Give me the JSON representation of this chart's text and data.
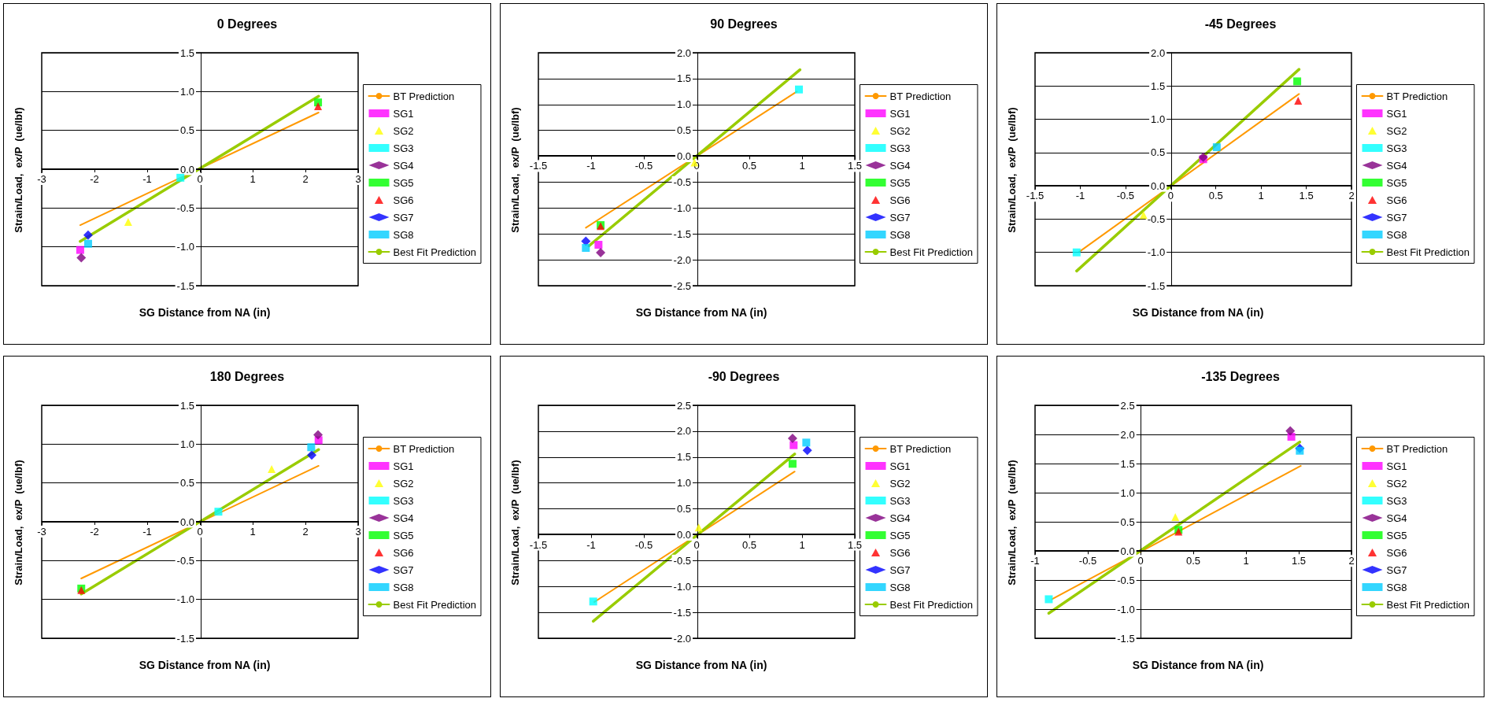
{
  "chart_data": [
    {
      "type": "scatter",
      "title": "0 Degrees",
      "xlabel": "SG Distance from NA (in)",
      "ylabel": "Strain/Load,  ex/P  (ue/lbf)",
      "xlim": [
        -3,
        3
      ],
      "xticks": [
        -3,
        -2,
        -1,
        0,
        1,
        2,
        3
      ],
      "ylim": [
        -1.5,
        1.5
      ],
      "yticks": [
        -1.5,
        {
          "value": -1,
          "label": "-1.0"
        },
        -0.5,
        {
          "value": 0,
          "label": "0.0"
        },
        0.5,
        {
          "value": 1,
          "label": "1.0"
        },
        1.5
      ],
      "grid": "y",
      "legend": "right",
      "series": [
        {
          "name": "BT Prediction",
          "type": "line",
          "color": "#ff9900",
          "marker": "none",
          "x": [
            -2.27,
            2.25
          ],
          "values": [
            -0.72,
            0.73
          ]
        },
        {
          "name": "SG1",
          "color": "#ff00ff",
          "marker": "square",
          "x": [
            -2.27
          ],
          "values": [
            -1.04
          ]
        },
        {
          "name": "SG2",
          "color": "#ffff00",
          "marker": "triangle",
          "x": [
            -1.36
          ],
          "values": [
            -0.68
          ]
        },
        {
          "name": "SG3",
          "color": "#00ffff",
          "marker": "square",
          "x": [
            -0.37
          ],
          "values": [
            -0.11
          ]
        },
        {
          "name": "SG4",
          "color": "#800080",
          "marker": "diamond",
          "x": [
            -2.25
          ],
          "values": [
            -1.14
          ]
        },
        {
          "name": "SG5",
          "color": "#00ff00",
          "marker": "square",
          "x": [
            2.24
          ],
          "values": [
            0.86
          ]
        },
        {
          "name": "SG6",
          "color": "#ff0000",
          "marker": "triangle",
          "x": [
            2.24
          ],
          "values": [
            0.81
          ]
        },
        {
          "name": "SG7",
          "color": "#0000ff",
          "marker": "diamond",
          "x": [
            -2.12
          ],
          "values": [
            -0.85
          ]
        },
        {
          "name": "SG8",
          "color": "#00ccff",
          "marker": "square",
          "x": [
            -2.12
          ],
          "values": [
            -0.96
          ]
        },
        {
          "name": "Best Fit Prediction",
          "type": "line",
          "color": "#99cc00",
          "marker": "none",
          "x": [
            -2.27,
            2.25
          ],
          "values": [
            -0.93,
            0.94
          ]
        }
      ]
    },
    {
      "type": "scatter",
      "title": "90 Degrees",
      "xlabel": "SG Distance from NA (in)",
      "ylabel": "Strain/Load,  ex/P  (ue/lbf)",
      "xlim": [
        -1.5,
        1.5
      ],
      "xticks": [
        -1.5,
        -1,
        -0.5,
        0,
        0.5,
        1,
        1.5
      ],
      "ylim": [
        -2.5,
        2
      ],
      "yticks": [
        -2.5,
        {
          "value": -2,
          "label": "-2.0"
        },
        -1.5,
        {
          "value": -1,
          "label": "-1.0"
        },
        -0.5,
        {
          "value": 0,
          "label": "0.0"
        },
        0.5,
        {
          "value": 1,
          "label": "1.0"
        },
        1.5,
        {
          "value": 2,
          "label": "2.0"
        }
      ],
      "grid": "y",
      "legend": "right",
      "series": [
        {
          "name": "BT Prediction",
          "type": "line",
          "color": "#ff9900",
          "marker": "none",
          "x": [
            -1.05,
            0.95
          ],
          "values": [
            -1.38,
            1.25
          ]
        },
        {
          "name": "SG1",
          "color": "#ff00ff",
          "marker": "square",
          "x": [
            -0.93
          ],
          "values": [
            -1.71
          ]
        },
        {
          "name": "SG2",
          "color": "#ffff00",
          "marker": "triangle",
          "x": [
            -0.02
          ],
          "values": [
            -0.12
          ]
        },
        {
          "name": "SG3",
          "color": "#00ffff",
          "marker": "square",
          "x": [
            0.97
          ],
          "values": [
            1.29
          ]
        },
        {
          "name": "SG4",
          "color": "#800080",
          "marker": "diamond",
          "x": [
            -0.91
          ],
          "values": [
            -1.86
          ]
        },
        {
          "name": "SG5",
          "color": "#00ff00",
          "marker": "square",
          "x": [
            -0.91
          ],
          "values": [
            -1.33
          ]
        },
        {
          "name": "SG6",
          "color": "#ff0000",
          "marker": "triangle",
          "x": [
            -0.91
          ],
          "values": [
            -1.35
          ]
        },
        {
          "name": "SG7",
          "color": "#0000ff",
          "marker": "diamond",
          "x": [
            -1.05
          ],
          "values": [
            -1.64
          ]
        },
        {
          "name": "SG8",
          "color": "#00ccff",
          "marker": "square",
          "x": [
            -1.05
          ],
          "values": [
            -1.77
          ]
        },
        {
          "name": "Best Fit Prediction",
          "type": "line",
          "color": "#99cc00",
          "marker": "none",
          "x": [
            -1.02,
            0.98
          ],
          "values": [
            -1.73,
            1.67
          ]
        }
      ]
    },
    {
      "type": "scatter",
      "title": "-45 Degrees",
      "xlabel": "SG Distance from NA (in)",
      "ylabel": "Strain/Load,  ex/P  (ue/lbf)",
      "xlim": [
        -1.5,
        2
      ],
      "xticks": [
        -1.5,
        -1,
        -0.5,
        0,
        0.5,
        1,
        1.5,
        2
      ],
      "ylim": [
        -1.5,
        2
      ],
      "yticks": [
        -1.5,
        {
          "value": -1,
          "label": "-1.0"
        },
        -0.5,
        {
          "value": 0,
          "label": "0.0"
        },
        0.5,
        {
          "value": 1,
          "label": "1.0"
        },
        1.5,
        {
          "value": 2,
          "label": "2.0"
        }
      ],
      "grid": "y",
      "legend": "right",
      "series": [
        {
          "name": "BT Prediction",
          "type": "line",
          "color": "#ff9900",
          "marker": "none",
          "x": [
            -1.01,
            1.42
          ],
          "values": [
            -0.99,
            1.38
          ]
        },
        {
          "name": "SG1",
          "color": "#ff00ff",
          "marker": "square",
          "x": [
            0.36
          ],
          "values": [
            0.4
          ]
        },
        {
          "name": "SG2",
          "color": "#ffff00",
          "marker": "triangle",
          "x": [
            -0.3
          ],
          "values": [
            -0.44
          ]
        },
        {
          "name": "SG3",
          "color": "#00ffff",
          "marker": "square",
          "x": [
            -1.04
          ],
          "values": [
            -1
          ]
        },
        {
          "name": "SG4",
          "color": "#800080",
          "marker": "diamond",
          "x": [
            0.36
          ],
          "values": [
            0.43
          ]
        },
        {
          "name": "SG5",
          "color": "#00ff00",
          "marker": "square",
          "x": [
            1.4
          ],
          "values": [
            1.57
          ]
        },
        {
          "name": "SG6",
          "color": "#ff0000",
          "marker": "triangle",
          "x": [
            1.41
          ],
          "values": [
            1.28
          ]
        },
        {
          "name": "SG7",
          "color": "#0000ff",
          "marker": "diamond"
        },
        {
          "name": "SG8",
          "color": "#00ccff",
          "marker": "square",
          "x": [
            0.51
          ],
          "values": [
            0.58
          ]
        },
        {
          "name": "Best Fit Prediction",
          "type": "line",
          "color": "#99cc00",
          "marker": "none",
          "x": [
            -1.04,
            1.42
          ],
          "values": [
            -1.28,
            1.75
          ]
        }
      ]
    },
    {
      "type": "scatter",
      "title": "180 Degrees",
      "xlabel": "SG Distance from NA (in)",
      "ylabel": "Strain/Load,  ex/P  (ue/lbf)",
      "xlim": [
        -3,
        3
      ],
      "xticks": [
        -3,
        -2,
        -1,
        0,
        1,
        2,
        3
      ],
      "ylim": [
        -1.5,
        1.5
      ],
      "yticks": [
        -1.5,
        {
          "value": -1,
          "label": "-1.0"
        },
        -0.5,
        {
          "value": 0,
          "label": "0.0"
        },
        0.5,
        {
          "value": 1,
          "label": "1.0"
        },
        1.5
      ],
      "grid": "y",
      "legend": "right",
      "series": [
        {
          "name": "BT Prediction",
          "type": "line",
          "color": "#ff9900",
          "marker": "none",
          "x": [
            -2.25,
            2.25
          ],
          "values": [
            -0.73,
            0.72
          ]
        },
        {
          "name": "SG1",
          "color": "#ff00ff",
          "marker": "square",
          "x": [
            2.25
          ],
          "values": [
            1.05
          ]
        },
        {
          "name": "SG2",
          "color": "#ffff00",
          "marker": "triangle",
          "x": [
            1.36
          ],
          "values": [
            0.68
          ]
        },
        {
          "name": "SG3",
          "color": "#00ffff",
          "marker": "square",
          "x": [
            0.35
          ],
          "values": [
            0.13
          ]
        },
        {
          "name": "SG4",
          "color": "#800080",
          "marker": "diamond",
          "x": [
            2.24
          ],
          "values": [
            1.12
          ]
        },
        {
          "name": "SG5",
          "color": "#00ff00",
          "marker": "square",
          "x": [
            -2.25
          ],
          "values": [
            -0.86
          ]
        },
        {
          "name": "SG6",
          "color": "#ff0000",
          "marker": "triangle",
          "x": [
            -2.25
          ],
          "values": [
            -0.88
          ]
        },
        {
          "name": "SG7",
          "color": "#0000ff",
          "marker": "diamond",
          "x": [
            2.12
          ],
          "values": [
            0.86
          ]
        },
        {
          "name": "SG8",
          "color": "#00ccff",
          "marker": "square",
          "x": [
            2.11
          ],
          "values": [
            0.96
          ]
        },
        {
          "name": "Best Fit Prediction",
          "type": "line",
          "color": "#99cc00",
          "marker": "none",
          "x": [
            -2.25,
            2.25
          ],
          "values": [
            -0.93,
            0.93
          ]
        }
      ]
    },
    {
      "type": "scatter",
      "title": "-90 Degrees",
      "xlabel": "SG Distance from NA (in)",
      "ylabel": "Strain/Load,  ex/P  (ue/lbf)",
      "xlim": [
        -1.5,
        1.5
      ],
      "xticks": [
        -1.5,
        -1,
        -0.5,
        0,
        0.5,
        1,
        1.5
      ],
      "ylim": [
        -2,
        2.5
      ],
      "yticks": [
        {
          "value": -2,
          "label": "-2.0"
        },
        -1.5,
        {
          "value": -1,
          "label": "-1.0"
        },
        -0.5,
        {
          "value": 0,
          "label": "0.0"
        },
        0.5,
        {
          "value": 1,
          "label": "1.0"
        },
        1.5,
        {
          "value": 2,
          "label": "2.0"
        },
        2.5
      ],
      "grid": "y",
      "legend": "right",
      "series": [
        {
          "name": "BT Prediction",
          "type": "line",
          "color": "#ff9900",
          "marker": "none",
          "x": [
            -0.97,
            0.93
          ],
          "values": [
            -1.3,
            1.22
          ]
        },
        {
          "name": "SG1",
          "color": "#ff00ff",
          "marker": "square",
          "x": [
            0.92
          ],
          "values": [
            1.73
          ]
        },
        {
          "name": "SG2",
          "color": "#ffff00",
          "marker": "triangle",
          "x": [
            0.02
          ],
          "values": [
            0.14
          ]
        },
        {
          "name": "SG3",
          "color": "#00ffff",
          "marker": "square",
          "x": [
            -0.98
          ],
          "values": [
            -1.29
          ]
        },
        {
          "name": "SG4",
          "color": "#800080",
          "marker": "diamond",
          "x": [
            0.91
          ],
          "values": [
            1.86
          ]
        },
        {
          "name": "SG5",
          "color": "#00ff00",
          "marker": "square",
          "x": [
            0.91
          ],
          "values": [
            1.37
          ]
        },
        {
          "name": "SG6",
          "color": "#ff0000",
          "marker": "triangle"
        },
        {
          "name": "SG7",
          "color": "#0000ff",
          "marker": "diamond",
          "x": [
            1.05
          ],
          "values": [
            1.63
          ]
        },
        {
          "name": "SG8",
          "color": "#00ccff",
          "marker": "square",
          "x": [
            1.04
          ],
          "values": [
            1.78
          ]
        },
        {
          "name": "Best Fit Prediction",
          "type": "line",
          "color": "#99cc00",
          "marker": "none",
          "x": [
            -0.98,
            0.93
          ],
          "values": [
            -1.67,
            1.56
          ]
        }
      ]
    },
    {
      "type": "scatter",
      "title": "-135 Degrees",
      "xlabel": "SG Distance from NA (in)",
      "ylabel": "Strain/Load,  ex/P  (ue/lbf)",
      "xlim": [
        -1,
        2
      ],
      "xticks": [
        -1,
        -0.5,
        0,
        0.5,
        1,
        1.5,
        2
      ],
      "ylim": [
        -1.5,
        2.5
      ],
      "yticks": [
        -1.5,
        {
          "value": -1,
          "label": "-1.0"
        },
        -0.5,
        {
          "value": 0,
          "label": "0.0"
        },
        0.5,
        {
          "value": 1,
          "label": "1.0"
        },
        1.5,
        {
          "value": 2,
          "label": "2.0"
        },
        2.5
      ],
      "grid": "y",
      "legend": "right",
      "series": [
        {
          "name": "BT Prediction",
          "type": "line",
          "color": "#ff9900",
          "marker": "none",
          "x": [
            -0.84,
            1.52
          ],
          "values": [
            -0.83,
            1.46
          ]
        },
        {
          "name": "SG1",
          "color": "#ff00ff",
          "marker": "square",
          "x": [
            1.43
          ],
          "values": [
            1.96
          ]
        },
        {
          "name": "SG2",
          "color": "#ffff00",
          "marker": "triangle",
          "x": [
            0.33
          ],
          "values": [
            0.58
          ]
        },
        {
          "name": "SG3",
          "color": "#00ffff",
          "marker": "square",
          "x": [
            -0.87
          ],
          "values": [
            -0.83
          ]
        },
        {
          "name": "SG4",
          "color": "#800080",
          "marker": "diamond",
          "x": [
            1.42
          ],
          "values": [
            2.06
          ]
        },
        {
          "name": "SG5",
          "color": "#00ff00",
          "marker": "square",
          "x": [
            0.36
          ],
          "values": [
            0.36
          ]
        },
        {
          "name": "SG6",
          "color": "#ff0000",
          "marker": "triangle",
          "x": [
            0.36
          ],
          "values": [
            0.33
          ]
        },
        {
          "name": "SG7",
          "color": "#0000ff",
          "marker": "diamond",
          "x": [
            1.51
          ],
          "values": [
            1.76
          ]
        },
        {
          "name": "SG8",
          "color": "#00ccff",
          "marker": "square",
          "x": [
            1.51
          ],
          "values": [
            1.72
          ]
        },
        {
          "name": "Best Fit Prediction",
          "type": "line",
          "color": "#99cc00",
          "marker": "none",
          "x": [
            -0.87,
            1.51
          ],
          "values": [
            -1.07,
            1.87
          ]
        }
      ]
    }
  ]
}
